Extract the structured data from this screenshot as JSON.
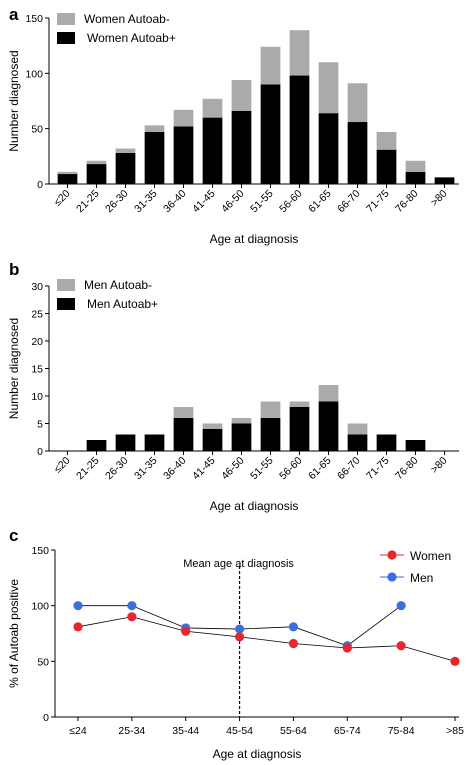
{
  "chart_data": [
    {
      "panel": "a",
      "type": "bar",
      "stacked": true,
      "categories": [
        "≤20",
        "21-25",
        "26-30",
        "31-35",
        "36-40",
        "41-45",
        "46-50",
        "51-55",
        "56-60",
        "61-65",
        "66-70",
        "71-75",
        "76-80",
        ">80"
      ],
      "series": [
        {
          "name": "Women Autoab+",
          "color": "#000000",
          "values": [
            9,
            18,
            28,
            47,
            52,
            60,
            66,
            90,
            98,
            64,
            56,
            31,
            11,
            6
          ]
        },
        {
          "name": "Women Autoab-",
          "color": "#aaaaaa",
          "values": [
            2,
            3,
            4,
            6,
            15,
            17,
            28,
            34,
            41,
            46,
            35,
            16,
            10,
            0
          ]
        }
      ],
      "xlabel": "Age at diagnosis",
      "ylabel": "Number diagnosed",
      "ylim": [
        0,
        150
      ],
      "yticks": [
        "0",
        "50",
        "100",
        "150"
      ],
      "legend_position": "top-left"
    },
    {
      "panel": "b",
      "type": "bar",
      "stacked": true,
      "categories": [
        "≤20",
        "21-25",
        "26-30",
        "31-35",
        "36-40",
        "41-45",
        "46-50",
        "51-55",
        "56-60",
        "61-65",
        "66-70",
        "71-75",
        "76-80",
        ">80"
      ],
      "series": [
        {
          "name": "Men Autoab+",
          "color": "#000000",
          "values": [
            0,
            2,
            3,
            3,
            6,
            4,
            5,
            6,
            8,
            9,
            3,
            3,
            2,
            0
          ]
        },
        {
          "name": "Men Autoab-",
          "color": "#aaaaaa",
          "values": [
            0,
            0,
            0,
            0,
            2,
            1,
            1,
            3,
            1,
            3,
            2,
            0,
            0,
            0
          ]
        }
      ],
      "xlabel": "Age at diagnosis",
      "ylabel": "Number diagnosed",
      "ylim": [
        0,
        30
      ],
      "yticks": [
        "0",
        "5",
        "10",
        "15",
        "20",
        "25",
        "30"
      ],
      "legend_position": "top-left"
    },
    {
      "panel": "c",
      "type": "line",
      "categories": [
        "≤24",
        "25-34",
        "35-44",
        "45-54",
        "55-64",
        "65-74",
        "75-84",
        ">85"
      ],
      "series": [
        {
          "name": "Women",
          "color": "#e8262e",
          "values": [
            81,
            90,
            77,
            72,
            66,
            62,
            64,
            50
          ]
        },
        {
          "name": "Men",
          "color": "#3b6fe0",
          "values": [
            100,
            100,
            80,
            79,
            81,
            64,
            100,
            null
          ]
        }
      ],
      "xlabel": "Age at diagnosis",
      "ylabel": "% of Autoab positive",
      "ylim": [
        0,
        150
      ],
      "yticks": [
        "0",
        "50",
        "100",
        "150"
      ],
      "annotation": "Mean age at diagnosis",
      "annotation_category_index": 3,
      "legend_position": "top-right"
    }
  ],
  "panel_labels": [
    "a",
    "b",
    "c"
  ]
}
